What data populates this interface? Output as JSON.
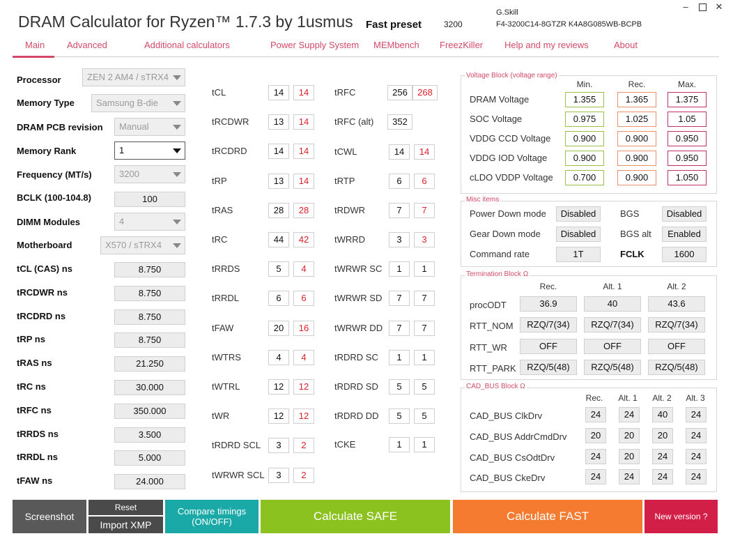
{
  "app": {
    "title": "DRAM Calculator for Ryzen™ 1.7.3 by 1usmus",
    "preset_label": "Fast preset",
    "preset_value": "3200",
    "module_brand": "G.Skill",
    "module_part": "F4-3200C14-8GTZR  K4A8G085WB-BCPB",
    "minimize_icon": "minimize-icon",
    "maximize_icon": "maximize-icon",
    "close_icon": "close-icon"
  },
  "nav": {
    "tabs": [
      "Main",
      "Advanced",
      "Additional calculators",
      "Power Supply System",
      "MEMbench",
      "FreezKiller",
      "Help and my reviews",
      "About"
    ]
  },
  "settings": {
    "processor": {
      "label": "Processor",
      "value": "ZEN 2 AM4 / sTRX4"
    },
    "memory_type": {
      "label": "Memory Type",
      "value": "Samsung B-die"
    },
    "pcb_revision": {
      "label": "DRAM PCB revision",
      "value": "Manual"
    },
    "memory_rank": {
      "label": "Memory Rank",
      "value": "1"
    },
    "frequency": {
      "label": "Frequency (MT/s)",
      "value": "3200"
    },
    "bclk": {
      "label": "BCLK (100-104.8)",
      "value": "100"
    },
    "dimm_modules": {
      "label": "DIMM Modules",
      "value": "4"
    },
    "motherboard": {
      "label": "Motherboard",
      "value": "X570 / sTRX4"
    }
  },
  "ns_values": [
    {
      "label": "tCL (CAS) ns",
      "value": "8.750"
    },
    {
      "label": "tRCDWR ns",
      "value": "8.750"
    },
    {
      "label": "tRCDRD ns",
      "value": "8.750"
    },
    {
      "label": "tRP ns",
      "value": "8.750"
    },
    {
      "label": "tRAS ns",
      "value": "21.250"
    },
    {
      "label": "tRC ns",
      "value": "30.000"
    },
    {
      "label": "tRFC ns",
      "value": "350.000"
    },
    {
      "label": "tRRDS ns",
      "value": "3.500"
    },
    {
      "label": "tRRDL ns",
      "value": "5.000"
    },
    {
      "label": "tFAW ns",
      "value": "24.000"
    }
  ],
  "timings_col1": [
    {
      "label": "tCL",
      "a": "14",
      "b": "14"
    },
    {
      "label": "tRCDWR",
      "a": "13",
      "b": "14"
    },
    {
      "label": "tRCDRD",
      "a": "14",
      "b": "14"
    },
    {
      "label": "tRP",
      "a": "13",
      "b": "14"
    },
    {
      "label": "tRAS",
      "a": "28",
      "b": "28"
    },
    {
      "label": "tRC",
      "a": "44",
      "b": "42"
    },
    {
      "label": "tRRDS",
      "a": "5",
      "b": "4"
    },
    {
      "label": "tRRDL",
      "a": "6",
      "b": "6"
    },
    {
      "label": "tFAW",
      "a": "20",
      "b": "16"
    },
    {
      "label": "tWTRS",
      "a": "4",
      "b": "4"
    },
    {
      "label": "tWTRL",
      "a": "12",
      "b": "12"
    },
    {
      "label": "tWR",
      "a": "12",
      "b": "12"
    },
    {
      "label": "tRDRD SCL",
      "a": "3",
      "b": "2"
    },
    {
      "label": "tWRWR SCL",
      "a": "3",
      "b": "2"
    }
  ],
  "timings_col2": {
    "trfc": {
      "label": "tRFC",
      "a": "256",
      "b": "268"
    },
    "trfc_alt": {
      "label": "tRFC (alt)",
      "a": "352"
    },
    "tcwl": {
      "label": "tCWL",
      "a": "14",
      "b": "14"
    },
    "trtp": {
      "label": "tRTP",
      "a": "6",
      "b": "6"
    },
    "trdwr": {
      "label": "tRDWR",
      "a": "7",
      "b": "7"
    },
    "twrrd": {
      "label": "tWRRD",
      "a": "3",
      "b": "3"
    },
    "twrwr_sc": {
      "label": "tWRWR SC",
      "a": "1",
      "b": "1"
    },
    "twrwr_sd": {
      "label": "tWRWR SD",
      "a": "7",
      "b": "7"
    },
    "twrwr_dd": {
      "label": "tWRWR DD",
      "a": "7",
      "b": "7"
    },
    "trdrd_sc": {
      "label": "tRDRD SC",
      "a": "1",
      "b": "1"
    },
    "trdrd_sd": {
      "label": "tRDRD SD",
      "a": "5",
      "b": "5"
    },
    "trdrd_dd": {
      "label": "tRDRD DD",
      "a": "5",
      "b": "5"
    },
    "tcke": {
      "label": "tCKE",
      "a": "1",
      "b": "1"
    }
  },
  "voltage": {
    "title": "Voltage Block (voltage range)",
    "headers": [
      "Min.",
      "Rec.",
      "Max."
    ],
    "rows": [
      {
        "label": "DRAM Voltage",
        "min": "1.355",
        "rec": "1.365",
        "max": "1.375"
      },
      {
        "label": "SOC Voltage",
        "min": "0.975",
        "rec": "1.025",
        "max": "1.05"
      },
      {
        "label": "VDDG  CCD Voltage",
        "min": "0.900",
        "rec": "0.900",
        "max": "0.950"
      },
      {
        "label": "VDDG  IOD Voltage",
        "min": "0.900",
        "rec": "0.900",
        "max": "0.950"
      },
      {
        "label": "cLDO VDDP Voltage",
        "min": "0.700",
        "rec": "0.900",
        "max": "1.050"
      }
    ]
  },
  "misc": {
    "title": "Misc items",
    "power_down": {
      "label": "Power Down mode",
      "value": "Disabled"
    },
    "gear_down": {
      "label": "Gear Down mode",
      "value": "Disabled"
    },
    "command_rate": {
      "label": "Command rate",
      "value": "1T"
    },
    "bgs": {
      "label": "BGS",
      "value": "Disabled"
    },
    "bgs_alt": {
      "label": "BGS alt",
      "value": "Enabled"
    },
    "fclk": {
      "label": "FCLK",
      "value": "1600"
    }
  },
  "termination": {
    "title": "Termination Block Ω",
    "headers": [
      "Rec.",
      "Alt. 1",
      "Alt. 2"
    ],
    "rows": [
      {
        "label": "procODT",
        "v": [
          "36.9",
          "40",
          "43.6"
        ]
      },
      {
        "label": "RTT_NOM",
        "v": [
          "RZQ/7(34)",
          "RZQ/7(34)",
          "RZQ/7(34)"
        ]
      },
      {
        "label": "RTT_WR",
        "v": [
          "OFF",
          "OFF",
          "OFF"
        ]
      },
      {
        "label": "RTT_PARK",
        "v": [
          "RZQ/5(48)",
          "RZQ/5(48)",
          "RZQ/5(48)"
        ]
      }
    ]
  },
  "cadbus": {
    "title": "CAD_BUS Block Ω",
    "headers": [
      "Rec.",
      "Alt. 1",
      "Alt. 2",
      "Alt. 3"
    ],
    "rows": [
      {
        "label": "CAD_BUS ClkDrv",
        "v": [
          "24",
          "24",
          "40",
          "24"
        ]
      },
      {
        "label": "CAD_BUS AddrCmdDrv",
        "v": [
          "20",
          "20",
          "20",
          "24"
        ]
      },
      {
        "label": "CAD_BUS CsOdtDrv",
        "v": [
          "24",
          "20",
          "24",
          "24"
        ]
      },
      {
        "label": "CAD_BUS CkeDrv",
        "v": [
          "24",
          "24",
          "24",
          "24"
        ]
      }
    ]
  },
  "buttons": {
    "screenshot": "Screenshot",
    "reset": "Reset",
    "import_xmp": "Import XMP",
    "compare_line1": "Compare timings",
    "compare_line2": "(ON/OFF)",
    "calc_safe": "Calculate SAFE",
    "calc_fast": "Calculate FAST",
    "new_version": "New version ?"
  },
  "colors": {
    "accent": "#d24a68",
    "screenshot_bg": "#595959",
    "reset_bg": "#4a4a4a",
    "compare_bg": "#1aa9a7",
    "safe_bg": "#8cc21f",
    "fast_bg": "#f47b30",
    "new_version_bg": "#d21f48"
  }
}
